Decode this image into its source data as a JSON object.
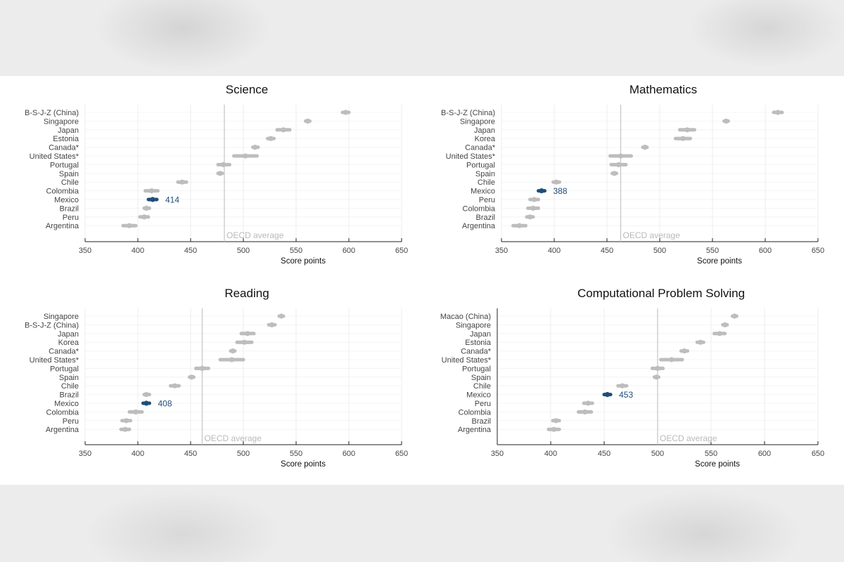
{
  "chart_data": [
    {
      "type": "scatter",
      "title": "Science",
      "xlabel": "Score points",
      "xlim": [
        350,
        650
      ],
      "xticks": [
        350,
        400,
        450,
        500,
        550,
        600,
        650
      ],
      "oecd_average": {
        "label": "OECD average",
        "value": 482
      },
      "highlight": {
        "country": "Mexico",
        "label": "414",
        "color": "#1f4e79"
      },
      "grid": true,
      "countries": [
        "B-S-J-Z (China)",
        "Singapore",
        "Japan",
        "Estonia",
        "Canada*",
        "United States*",
        "Portugal",
        "Spain",
        "Chile",
        "Colombia",
        "Mexico",
        "Brazil",
        "Peru",
        "Argentina"
      ],
      "values": [
        597,
        561,
        538,
        526,
        511,
        502,
        481,
        478,
        442,
        413,
        414,
        408,
        406,
        392
      ],
      "ci_low": [
        594,
        559,
        532,
        523,
        509,
        491,
        476,
        476,
        438,
        407,
        410,
        406,
        402,
        386
      ],
      "ci_high": [
        600,
        563,
        544,
        529,
        514,
        513,
        487,
        480,
        446,
        419,
        418,
        411,
        410,
        398
      ]
    },
    {
      "type": "scatter",
      "title": "Mathematics",
      "xlabel": "Score points",
      "xlim": [
        350,
        650
      ],
      "xticks": [
        350,
        400,
        450,
        500,
        550,
        600,
        650
      ],
      "oecd_average": {
        "label": "OECD average",
        "value": 463
      },
      "highlight": {
        "country": "Mexico",
        "label": "388",
        "color": "#1f4e79"
      },
      "grid": true,
      "countries": [
        "B-S-J-Z (China)",
        "Singapore",
        "Japan",
        "Korea",
        "Canada*",
        "United States*",
        "Portugal",
        "Spain",
        "Chile",
        "Mexico",
        "Peru",
        "Colombia",
        "Brazil",
        "Argentina"
      ],
      "values": [
        612,
        563,
        526,
        522,
        486,
        463,
        461,
        457,
        402,
        388,
        381,
        380,
        377,
        367
      ],
      "ci_low": [
        608,
        561,
        519,
        515,
        484,
        453,
        454,
        455,
        399,
        385,
        377,
        375,
        374,
        361
      ],
      "ci_high": [
        616,
        565,
        533,
        529,
        488,
        473,
        468,
        459,
        405,
        391,
        385,
        385,
        380,
        373
      ]
    },
    {
      "type": "scatter",
      "title": "Reading",
      "xlabel": "Score points",
      "xlim": [
        350,
        650
      ],
      "xticks": [
        350,
        400,
        450,
        500,
        550,
        600,
        650
      ],
      "oecd_average": {
        "label": "OECD average",
        "value": 461
      },
      "highlight": {
        "country": "Mexico",
        "label": "408",
        "color": "#1f4e79"
      },
      "grid": true,
      "countries": [
        "Singapore",
        "B-S-J-Z (China)",
        "Japan",
        "Korea",
        "Canada*",
        "United States*",
        "Portugal",
        "Spain",
        "Chile",
        "Brazil",
        "Mexico",
        "Colombia",
        "Peru",
        "Argentina"
      ],
      "values": [
        536,
        527,
        504,
        501,
        490,
        489,
        461,
        451,
        435,
        408,
        408,
        398,
        389,
        388
      ],
      "ci_low": [
        534,
        524,
        498,
        494,
        488,
        478,
        455,
        449,
        431,
        406,
        405,
        392,
        385,
        384
      ],
      "ci_high": [
        538,
        530,
        510,
        508,
        492,
        500,
        467,
        453,
        439,
        411,
        411,
        404,
        393,
        392
      ]
    },
    {
      "type": "scatter",
      "title": "Computational Problem Solving",
      "xlabel": "Score points",
      "xlim": [
        350,
        650
      ],
      "xticks": [
        350,
        400,
        450,
        500,
        550,
        600,
        650
      ],
      "oecd_average": {
        "label": "OECD average",
        "value": 500
      },
      "highlight": {
        "country": "Mexico",
        "label": "453",
        "color": "#1f4e79"
      },
      "grid": true,
      "countries": [
        "Macao (China)",
        "Singapore",
        "Japan",
        "Estonia",
        "Canada*",
        "United States*",
        "Portugal",
        "Spain",
        "Chile",
        "Mexico",
        "Peru",
        "Colombia",
        "Brazil",
        "Argentina"
      ],
      "values": [
        572,
        563,
        558,
        540,
        525,
        513,
        500,
        499,
        467,
        453,
        435,
        432,
        405,
        403
      ],
      "ci_low": [
        570,
        561,
        553,
        537,
        522,
        503,
        495,
        497,
        463,
        450,
        431,
        426,
        402,
        398
      ],
      "ci_high": [
        574,
        565,
        563,
        543,
        528,
        523,
        505,
        501,
        471,
        456,
        439,
        438,
        408,
        408
      ]
    }
  ]
}
